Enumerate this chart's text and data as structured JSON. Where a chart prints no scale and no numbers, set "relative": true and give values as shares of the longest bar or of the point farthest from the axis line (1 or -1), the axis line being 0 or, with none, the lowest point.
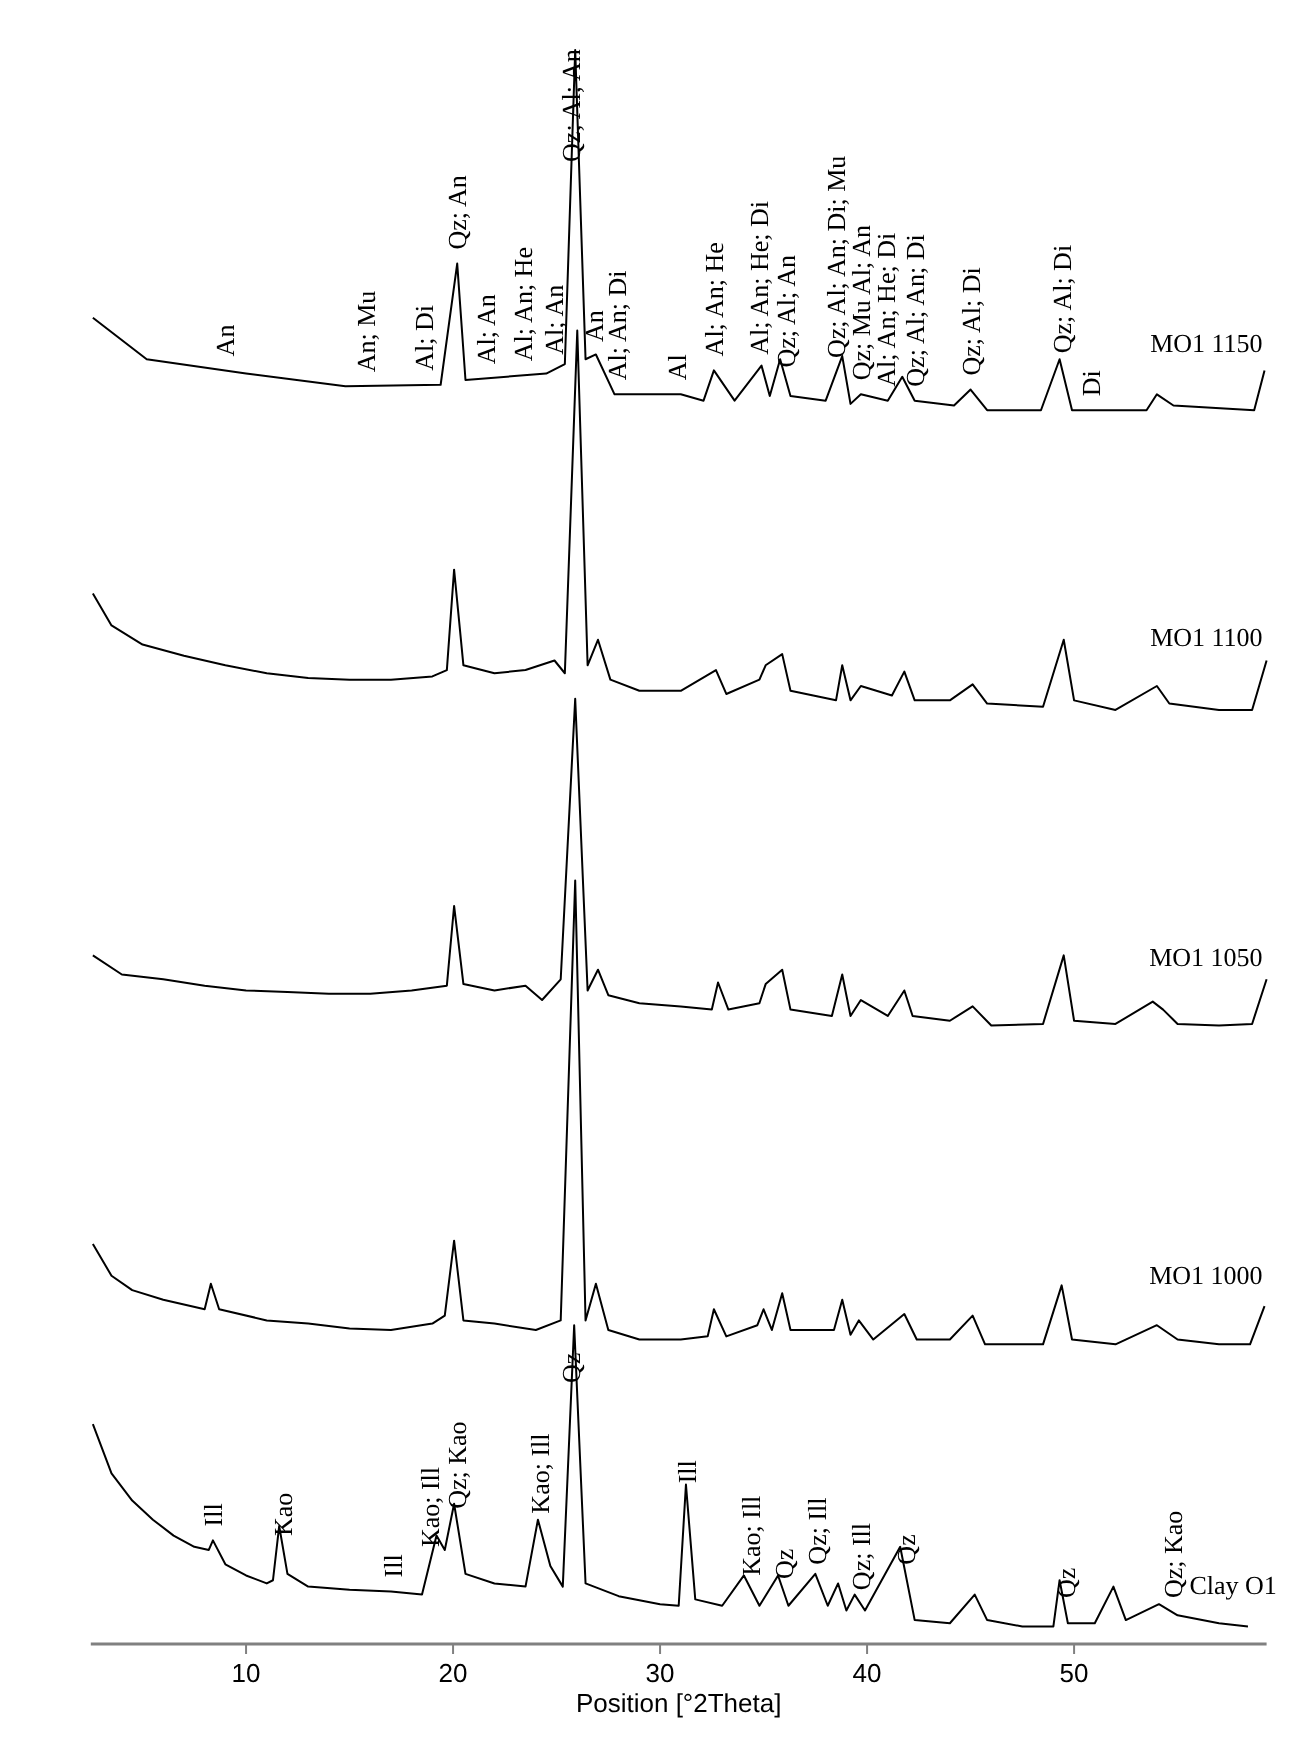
{
  "chart_data": {
    "type": "line",
    "xlabel": "Position [°2Theta]",
    "xlim": [
      2.5,
      59.3
    ],
    "xticks": [
      10,
      20,
      30,
      40,
      50
    ],
    "relative": true,
    "series": [
      {
        "name": "MO1 1150",
        "color": "#000000",
        "x": [
          2.6,
          5.2,
          10,
          14.8,
          19.4,
          20.2,
          20.6,
          24.5,
          25.4,
          25.9,
          26.4,
          26.9,
          27.8,
          31,
          32.1,
          32.6,
          33.6,
          34.9,
          35.3,
          35.8,
          36.3,
          38,
          38.8,
          39.2,
          39.7,
          41,
          41.7,
          42.3,
          44.2,
          45,
          45.8,
          48.4,
          49.3,
          49.9,
          53.5,
          54,
          54.8,
          58.7,
          59.2
        ],
        "values": [
          0.832,
          0.806,
          0.797,
          0.789,
          0.79,
          0.866,
          0.793,
          0.797,
          0.803,
          1.0,
          0.806,
          0.809,
          0.784,
          0.784,
          0.78,
          0.799,
          0.78,
          0.802,
          0.783,
          0.806,
          0.783,
          0.78,
          0.808,
          0.778,
          0.784,
          0.78,
          0.795,
          0.78,
          0.777,
          0.787,
          0.774,
          0.774,
          0.806,
          0.774,
          0.774,
          0.784,
          0.777,
          0.774,
          0.799
        ]
      },
      {
        "name": "MO1 1100",
        "color": "#000000",
        "x": [
          2.6,
          3.5,
          5,
          7,
          9,
          11,
          13,
          15,
          17,
          19,
          19.7,
          20.05,
          20.5,
          22,
          23.5,
          24.9,
          25.4,
          26,
          26.5,
          27,
          27.6,
          29,
          31,
          32.7,
          33.2,
          34.8,
          35.1,
          35.9,
          36.3,
          38.5,
          38.8,
          39.2,
          39.7,
          41.2,
          41.8,
          42.3,
          44,
          45.1,
          45.8,
          48.5,
          49.5,
          50,
          52,
          54,
          54.6,
          57,
          58.6,
          59.3
        ],
        "values": [
          0.659,
          0.639,
          0.627,
          0.62,
          0.614,
          0.609,
          0.606,
          0.605,
          0.605,
          0.607,
          0.611,
          0.674,
          0.614,
          0.609,
          0.611,
          0.617,
          0.609,
          0.824,
          0.614,
          0.63,
          0.605,
          0.598,
          0.598,
          0.611,
          0.596,
          0.605,
          0.614,
          0.621,
          0.598,
          0.592,
          0.614,
          0.592,
          0.601,
          0.595,
          0.61,
          0.592,
          0.592,
          0.602,
          0.59,
          0.588,
          0.63,
          0.592,
          0.586,
          0.601,
          0.59,
          0.586,
          0.586,
          0.617
        ]
      },
      {
        "name": "MO1 1050",
        "color": "#000000",
        "x": [
          2.6,
          4,
          6,
          8,
          10,
          12,
          14,
          16,
          18,
          19.7,
          20.05,
          20.5,
          22,
          23.5,
          24.3,
          25.2,
          25.9,
          26.5,
          27,
          27.5,
          29,
          31,
          32.5,
          32.8,
          33.3,
          34.8,
          35.1,
          35.9,
          36.3,
          38.3,
          38.8,
          39.2,
          39.7,
          41,
          41.8,
          42.2,
          44,
          45.1,
          46,
          48.5,
          49.5,
          50,
          52,
          53.8,
          54.3,
          55,
          57,
          58.6,
          59.3
        ],
        "values": [
          0.432,
          0.42,
          0.417,
          0.413,
          0.41,
          0.409,
          0.408,
          0.408,
          0.41,
          0.413,
          0.463,
          0.414,
          0.41,
          0.413,
          0.404,
          0.417,
          0.593,
          0.41,
          0.423,
          0.407,
          0.402,
          0.4,
          0.398,
          0.415,
          0.398,
          0.402,
          0.414,
          0.423,
          0.398,
          0.394,
          0.42,
          0.394,
          0.404,
          0.394,
          0.41,
          0.394,
          0.391,
          0.4,
          0.388,
          0.389,
          0.432,
          0.391,
          0.389,
          0.403,
          0.398,
          0.389,
          0.388,
          0.389,
          0.417
        ]
      },
      {
        "name": "MO1 1000",
        "color": "#000000",
        "x": [
          2.6,
          3.5,
          4.5,
          6,
          8,
          8.3,
          8.7,
          11,
          13,
          15,
          17,
          19,
          19.6,
          20.05,
          20.5,
          22,
          24,
          25.2,
          25.9,
          26.4,
          26.9,
          27.5,
          29,
          31,
          32.3,
          32.6,
          33.2,
          34.7,
          35,
          35.4,
          35.9,
          36.3,
          38.4,
          38.8,
          39.2,
          39.6,
          40.3,
          41.8,
          42.4,
          44,
          45.1,
          45.7,
          48.5,
          49.4,
          49.9,
          52,
          54,
          55,
          57,
          58.5,
          59.2
        ],
        "values": [
          0.251,
          0.231,
          0.222,
          0.216,
          0.21,
          0.226,
          0.21,
          0.203,
          0.201,
          0.198,
          0.197,
          0.201,
          0.206,
          0.253,
          0.203,
          0.201,
          0.197,
          0.203,
          0.479,
          0.203,
          0.226,
          0.197,
          0.191,
          0.191,
          0.193,
          0.21,
          0.193,
          0.2,
          0.21,
          0.197,
          0.22,
          0.197,
          0.197,
          0.216,
          0.194,
          0.203,
          0.191,
          0.207,
          0.191,
          0.191,
          0.206,
          0.188,
          0.188,
          0.225,
          0.191,
          0.188,
          0.2,
          0.191,
          0.188,
          0.188,
          0.212
        ]
      },
      {
        "name": "Clay O1",
        "color": "#000000",
        "x": [
          2.6,
          3.5,
          4.5,
          5.5,
          6.5,
          7.5,
          8.2,
          8.4,
          9,
          10,
          11,
          11.3,
          11.6,
          12,
          13,
          15,
          17,
          18.5,
          19.2,
          19.6,
          20.05,
          20.6,
          22,
          23.5,
          24.1,
          24.7,
          25.3,
          25.85,
          26.4,
          28,
          30,
          30.9,
          31.25,
          31.7,
          33,
          34.05,
          34.8,
          35.7,
          36.2,
          37.5,
          38.1,
          38.6,
          39,
          39.4,
          39.9,
          41.6,
          42.3,
          44,
          45.2,
          45.8,
          47.5,
          49,
          49.3,
          49.7,
          51,
          51.9,
          52.5,
          54.1,
          55,
          57,
          58.4
        ],
        "values": [
          0.138,
          0.107,
          0.09,
          0.078,
          0.068,
          0.061,
          0.059,
          0.065,
          0.05,
          0.043,
          0.038,
          0.04,
          0.074,
          0.044,
          0.036,
          0.034,
          0.033,
          0.031,
          0.068,
          0.059,
          0.088,
          0.044,
          0.038,
          0.036,
          0.078,
          0.049,
          0.036,
          0.2,
          0.038,
          0.03,
          0.025,
          0.024,
          0.1,
          0.028,
          0.024,
          0.043,
          0.024,
          0.043,
          0.024,
          0.044,
          0.024,
          0.038,
          0.021,
          0.031,
          0.021,
          0.061,
          0.015,
          0.013,
          0.031,
          0.015,
          0.011,
          0.011,
          0.04,
          0.013,
          0.013,
          0.036,
          0.015,
          0.025,
          0.018,
          0.013,
          0.011
        ]
      }
    ],
    "annotations": [
      {
        "text": "An",
        "x": 9.0,
        "y": 0.799
      },
      {
        "text": "An; Mu",
        "x": 15.8,
        "y": 0.789
      },
      {
        "text": "Al; Di",
        "x": 18.6,
        "y": 0.79
      },
      {
        "text": "Qz; An",
        "x": 20.2,
        "y": 0.866
      },
      {
        "text": "Al; An",
        "x": 21.6,
        "y": 0.794
      },
      {
        "text": "Al; An; He",
        "x": 23.4,
        "y": 0.796
      },
      {
        "text": "Al; An",
        "x": 24.9,
        "y": 0.8
      },
      {
        "text": "Qz; Al; An",
        "x": 25.7,
        "y": 0.921
      },
      {
        "text": "An",
        "x": 26.8,
        "y": 0.808
      },
      {
        "text": "Al; An; Di",
        "x": 27.9,
        "y": 0.784
      },
      {
        "text": "Al",
        "x": 30.8,
        "y": 0.784
      },
      {
        "text": "Al; An; He",
        "x": 32.6,
        "y": 0.799
      },
      {
        "text": "Al; An; He; Di",
        "x": 34.8,
        "y": 0.8
      },
      {
        "text": "Qz; Al; An",
        "x": 36.1,
        "y": 0.792
      },
      {
        "text": "Qz; Al; An; Di; Mu",
        "x": 38.5,
        "y": 0.798
      },
      {
        "text": "Qz; Mu Al; An",
        "x": 39.7,
        "y": 0.784
      },
      {
        "text": "Al; An; He; Di",
        "x": 40.9,
        "y": 0.78
      },
      {
        "text": "Qz; Al; An; Di",
        "x": 42.3,
        "y": 0.78
      },
      {
        "text": "Qz; Al; Di",
        "x": 45.0,
        "y": 0.787
      },
      {
        "text": "Qz; Al; Di",
        "x": 49.4,
        "y": 0.801
      },
      {
        "text": "Di",
        "x": 50.8,
        "y": 0.774
      },
      {
        "text": "Ill",
        "x": 8.4,
        "y": 0.065
      },
      {
        "text": "Kao",
        "x": 11.8,
        "y": 0.059
      },
      {
        "text": "Ill",
        "x": 17.1,
        "y": 0.033
      },
      {
        "text": "Kao; Ill",
        "x": 18.9,
        "y": 0.052
      },
      {
        "text": "Qz; Kao",
        "x": 20.2,
        "y": 0.076
      },
      {
        "text": "Kao; Ill",
        "x": 24.2,
        "y": 0.073
      },
      {
        "text": "Qz",
        "x": 25.7,
        "y": 0.155
      },
      {
        "text": "Ill",
        "x": 31.3,
        "y": 0.092
      },
      {
        "text": "Kao; Ill",
        "x": 34.4,
        "y": 0.034
      },
      {
        "text": "Qz",
        "x": 36.0,
        "y": 0.032
      },
      {
        "text": "Qz; Ill",
        "x": 37.6,
        "y": 0.041
      },
      {
        "text": "Qz; Ill",
        "x": 39.7,
        "y": 0.025
      },
      {
        "text": "Qz",
        "x": 41.9,
        "y": 0.041
      },
      {
        "text": "Qz",
        "x": 49.6,
        "y": 0.02
      },
      {
        "text": "Qz; Kao",
        "x": 54.8,
        "y": 0.02
      }
    ]
  }
}
